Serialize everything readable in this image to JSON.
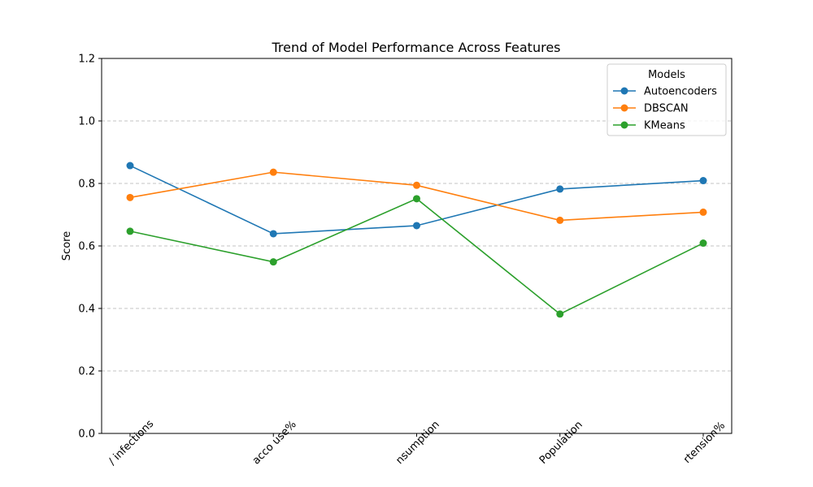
{
  "chart_data": {
    "type": "line",
    "title": "Trend of Model Performance Across Features",
    "xlabel": "",
    "ylabel": "Score",
    "categories": [
      "HIV infections",
      "Tobacco use%",
      "Alcohol consumption",
      "Population",
      "Hypertension%"
    ],
    "category_labels": [
      "/ infections",
      "acco use%",
      "nsumption",
      "Population",
      "rtension%"
    ],
    "ylim": [
      0,
      1.2
    ],
    "yticks": [
      "0.0",
      "0.2",
      "0.4",
      "0.6",
      "0.8",
      "1.0",
      "1.2"
    ],
    "grid": "y-dashed",
    "legend": {
      "title": "Models",
      "placement": "top-right"
    },
    "series": [
      {
        "name": "Autoencoders",
        "color": "#1f77b4",
        "values": [
          0.857,
          0.639,
          0.665,
          0.782,
          0.809
        ]
      },
      {
        "name": "DBSCAN",
        "color": "#ff7f0e",
        "values": [
          0.755,
          0.836,
          0.794,
          0.682,
          0.708
        ]
      },
      {
        "name": "KMeans",
        "color": "#2ca02c",
        "values": [
          0.647,
          0.549,
          0.751,
          0.382,
          0.609
        ]
      }
    ]
  }
}
